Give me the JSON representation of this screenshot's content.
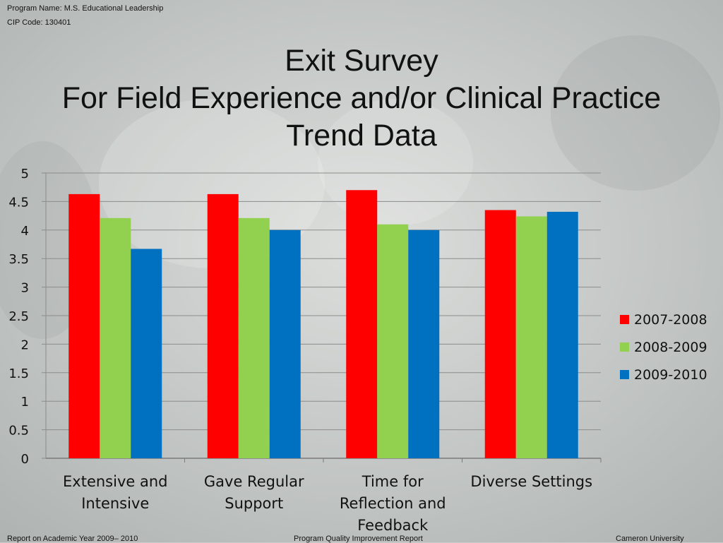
{
  "header": {
    "program_name": "Program Name: M.S. Educational Leadership",
    "cip_code": "CIP Code: 130401"
  },
  "footer": {
    "left": "Report on Academic Year 2009– 2010",
    "center": "Program Quality Improvement Report",
    "right": "Cameron University"
  },
  "colors": {
    "series": [
      "#ff0000",
      "#92d050",
      "#0070c0"
    ],
    "gridline": "#8c8c8c"
  },
  "chart_data": {
    "type": "bar",
    "title_lines": [
      "Exit Survey",
      "For Field Experience and/or Clinical Practice",
      "Trend Data"
    ],
    "categories": [
      [
        "Extensive and",
        "Intensive"
      ],
      [
        "Gave Regular",
        "Support"
      ],
      [
        "Time for",
        "Reflection and",
        "Feedback"
      ],
      [
        "Diverse Settings"
      ]
    ],
    "series": [
      {
        "name": "2007-2008",
        "values": [
          4.63,
          4.63,
          4.7,
          4.35
        ]
      },
      {
        "name": "2008-2009",
        "values": [
          4.21,
          4.21,
          4.1,
          4.24
        ]
      },
      {
        "name": "2009-2010",
        "values": [
          3.67,
          4.0,
          4.0,
          4.32
        ]
      }
    ],
    "y_ticks": [
      "0",
      "0.5",
      "1",
      "1.5",
      "2",
      "2.5",
      "3",
      "3.5",
      "4",
      "4.5",
      "5"
    ],
    "ylim": [
      0,
      5
    ],
    "grid": true,
    "legend_position": "right"
  }
}
